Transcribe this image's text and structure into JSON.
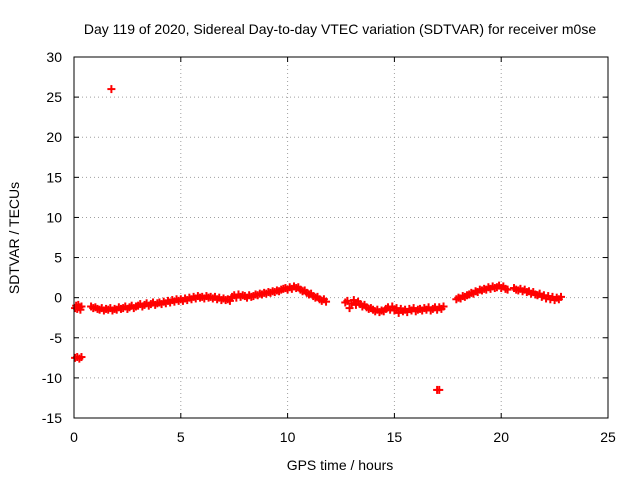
{
  "chart_data": {
    "type": "scatter",
    "title": "Day 119 of 2020, Sidereal Day-to-day VTEC variation (SDTVAR) for receiver m0se",
    "xlabel": "GPS time / hours",
    "ylabel": "SDTVAR / TECUs",
    "xlim": [
      0,
      25
    ],
    "ylim": [
      -15,
      30
    ],
    "xticks": [
      0,
      5,
      10,
      15,
      20,
      25
    ],
    "yticks": [
      -15,
      -10,
      -5,
      0,
      5,
      10,
      15,
      20,
      25,
      30
    ],
    "grid": true,
    "marker": "plus",
    "series_color": "#ff0000",
    "series": [
      {
        "name": "SDTVAR",
        "points": [
          [
            0.05,
            -1.3
          ],
          [
            0.1,
            -1.0
          ],
          [
            0.15,
            -1.4
          ],
          [
            0.2,
            -0.9
          ],
          [
            0.25,
            -1.2
          ],
          [
            0.3,
            -1.5
          ],
          [
            0.35,
            -1.1
          ],
          [
            0.05,
            -7.5
          ],
          [
            0.15,
            -7.4
          ],
          [
            0.25,
            -7.6
          ],
          [
            0.35,
            -7.4
          ],
          [
            1.75,
            26.0
          ],
          [
            17.0,
            -11.5
          ],
          [
            17.1,
            -11.5
          ],
          [
            0.8,
            -1.1
          ],
          [
            0.9,
            -1.3
          ],
          [
            1.0,
            -1.2
          ],
          [
            1.1,
            -1.4
          ],
          [
            1.2,
            -1.5
          ],
          [
            1.3,
            -1.3
          ],
          [
            1.4,
            -1.6
          ],
          [
            1.5,
            -1.4
          ],
          [
            1.6,
            -1.5
          ],
          [
            1.7,
            -1.3
          ],
          [
            1.8,
            -1.6
          ],
          [
            1.9,
            -1.4
          ],
          [
            2.0,
            -1.5
          ],
          [
            2.1,
            -1.2
          ],
          [
            2.2,
            -1.4
          ],
          [
            2.3,
            -1.3
          ],
          [
            2.4,
            -1.1
          ],
          [
            2.5,
            -1.4
          ],
          [
            2.6,
            -1.2
          ],
          [
            2.7,
            -1.0
          ],
          [
            2.8,
            -1.3
          ],
          [
            2.9,
            -1.1
          ],
          [
            3.0,
            -1.0
          ],
          [
            3.1,
            -0.8
          ],
          [
            3.2,
            -1.1
          ],
          [
            3.3,
            -0.9
          ],
          [
            3.4,
            -0.7
          ],
          [
            3.5,
            -1.0
          ],
          [
            3.6,
            -0.8
          ],
          [
            3.7,
            -0.6
          ],
          [
            3.8,
            -0.9
          ],
          [
            3.9,
            -0.7
          ],
          [
            4.0,
            -0.6
          ],
          [
            4.1,
            -0.8
          ],
          [
            4.2,
            -0.5
          ],
          [
            4.3,
            -0.7
          ],
          [
            4.4,
            -0.4
          ],
          [
            4.5,
            -0.6
          ],
          [
            4.6,
            -0.3
          ],
          [
            4.7,
            -0.5
          ],
          [
            4.8,
            -0.2
          ],
          [
            4.9,
            -0.4
          ],
          [
            5.0,
            -0.2
          ],
          [
            5.1,
            -0.4
          ],
          [
            5.2,
            -0.1
          ],
          [
            5.3,
            -0.3
          ],
          [
            5.4,
            0.0
          ],
          [
            5.5,
            -0.2
          ],
          [
            5.6,
            0.1
          ],
          [
            5.7,
            -0.1
          ],
          [
            5.8,
            0.2
          ],
          [
            5.9,
            0.0
          ],
          [
            6.0,
            0.1
          ],
          [
            6.1,
            -0.1
          ],
          [
            6.2,
            0.2
          ],
          [
            6.3,
            0.0
          ],
          [
            6.4,
            0.1
          ],
          [
            6.5,
            -0.1
          ],
          [
            6.6,
            0.1
          ],
          [
            6.7,
            -0.2
          ],
          [
            6.8,
            0.0
          ],
          [
            6.9,
            -0.3
          ],
          [
            7.0,
            -0.1
          ],
          [
            7.1,
            -0.3
          ],
          [
            7.2,
            -0.2
          ],
          [
            7.3,
            -0.4
          ],
          [
            7.4,
            0.1
          ],
          [
            7.5,
            0.3
          ],
          [
            7.6,
            0.0
          ],
          [
            7.7,
            0.4
          ],
          [
            7.8,
            0.1
          ],
          [
            7.9,
            0.3
          ],
          [
            8.0,
            0.2
          ],
          [
            8.1,
            0.0
          ],
          [
            8.2,
            0.3
          ],
          [
            8.3,
            0.1
          ],
          [
            8.4,
            0.2
          ],
          [
            8.5,
            0.4
          ],
          [
            8.6,
            0.3
          ],
          [
            8.7,
            0.5
          ],
          [
            8.8,
            0.4
          ],
          [
            8.9,
            0.6
          ],
          [
            9.0,
            0.5
          ],
          [
            9.1,
            0.7
          ],
          [
            9.2,
            0.6
          ],
          [
            9.3,
            0.8
          ],
          [
            9.4,
            0.7
          ],
          [
            9.5,
            0.9
          ],
          [
            9.6,
            0.8
          ],
          [
            9.7,
            1.0
          ],
          [
            9.8,
            1.1
          ],
          [
            9.9,
            1.2
          ],
          [
            10.0,
            1.0
          ],
          [
            10.1,
            1.3
          ],
          [
            10.2,
            1.1
          ],
          [
            10.3,
            1.4
          ],
          [
            10.4,
            1.2
          ],
          [
            10.5,
            1.3
          ],
          [
            10.6,
            1.0
          ],
          [
            10.7,
            0.8
          ],
          [
            10.8,
            0.9
          ],
          [
            10.9,
            0.6
          ],
          [
            11.0,
            0.4
          ],
          [
            11.1,
            0.5
          ],
          [
            11.2,
            0.2
          ],
          [
            11.3,
            0.0
          ],
          [
            11.4,
            0.1
          ],
          [
            11.5,
            -0.2
          ],
          [
            11.6,
            -0.4
          ],
          [
            11.7,
            -0.2
          ],
          [
            11.8,
            -0.5
          ],
          [
            12.7,
            -0.6
          ],
          [
            12.8,
            -0.4
          ],
          [
            12.9,
            -1.3
          ],
          [
            13.0,
            -0.7
          ],
          [
            13.1,
            -0.3
          ],
          [
            13.2,
            -0.9
          ],
          [
            13.3,
            -0.5
          ],
          [
            13.4,
            -0.8
          ],
          [
            13.5,
            -1.1
          ],
          [
            13.6,
            -0.9
          ],
          [
            13.7,
            -1.2
          ],
          [
            13.8,
            -1.4
          ],
          [
            13.9,
            -1.3
          ],
          [
            14.0,
            -1.5
          ],
          [
            14.1,
            -1.7
          ],
          [
            14.2,
            -1.5
          ],
          [
            14.3,
            -1.8
          ],
          [
            14.4,
            -1.6
          ],
          [
            14.5,
            -1.7
          ],
          [
            14.6,
            -1.4
          ],
          [
            14.7,
            -1.2
          ],
          [
            14.8,
            -1.5
          ],
          [
            14.9,
            -1.1
          ],
          [
            15.0,
            -1.6
          ],
          [
            15.1,
            -1.3
          ],
          [
            15.2,
            -1.9
          ],
          [
            15.3,
            -1.4
          ],
          [
            15.4,
            -1.7
          ],
          [
            15.5,
            -1.5
          ],
          [
            15.6,
            -1.8
          ],
          [
            15.7,
            -1.4
          ],
          [
            15.8,
            -1.6
          ],
          [
            15.9,
            -1.3
          ],
          [
            16.0,
            -1.7
          ],
          [
            16.1,
            -1.5
          ],
          [
            16.2,
            -1.4
          ],
          [
            16.3,
            -1.6
          ],
          [
            16.4,
            -1.3
          ],
          [
            16.5,
            -1.5
          ],
          [
            16.6,
            -1.2
          ],
          [
            16.7,
            -1.6
          ],
          [
            16.8,
            -1.4
          ],
          [
            16.9,
            -1.2
          ],
          [
            17.0,
            -1.5
          ],
          [
            17.1,
            -1.2
          ],
          [
            17.2,
            -1.4
          ],
          [
            17.3,
            -1.1
          ],
          [
            17.9,
            -0.2
          ],
          [
            18.0,
            0.0
          ],
          [
            18.1,
            -0.1
          ],
          [
            18.2,
            0.2
          ],
          [
            18.3,
            0.1
          ],
          [
            18.4,
            0.3
          ],
          [
            18.5,
            0.4
          ],
          [
            18.6,
            0.6
          ],
          [
            18.7,
            0.5
          ],
          [
            18.8,
            0.8
          ],
          [
            18.9,
            0.7
          ],
          [
            19.0,
            1.0
          ],
          [
            19.1,
            0.9
          ],
          [
            19.2,
            1.1
          ],
          [
            19.3,
            1.0
          ],
          [
            19.4,
            1.3
          ],
          [
            19.5,
            1.1
          ],
          [
            19.6,
            1.4
          ],
          [
            19.7,
            1.2
          ],
          [
            19.8,
            1.3
          ],
          [
            19.9,
            1.5
          ],
          [
            20.0,
            1.2
          ],
          [
            20.1,
            1.4
          ],
          [
            20.2,
            1.1
          ],
          [
            20.3,
            1.0
          ],
          [
            20.6,
            1.2
          ],
          [
            20.7,
            1.0
          ],
          [
            20.8,
            0.9
          ],
          [
            20.9,
            1.1
          ],
          [
            21.0,
            0.8
          ],
          [
            21.1,
            1.0
          ],
          [
            21.2,
            0.7
          ],
          [
            21.3,
            0.8
          ],
          [
            21.4,
            0.5
          ],
          [
            21.5,
            0.7
          ],
          [
            21.6,
            0.4
          ],
          [
            21.7,
            0.3
          ],
          [
            21.8,
            0.5
          ],
          [
            21.9,
            0.1
          ],
          [
            22.0,
            0.3
          ],
          [
            22.1,
            -0.1
          ],
          [
            22.2,
            0.2
          ],
          [
            22.3,
            -0.2
          ],
          [
            22.4,
            0.1
          ],
          [
            22.5,
            -0.3
          ],
          [
            22.6,
            0.0
          ],
          [
            22.7,
            -0.2
          ],
          [
            22.8,
            0.1
          ]
        ]
      }
    ]
  }
}
